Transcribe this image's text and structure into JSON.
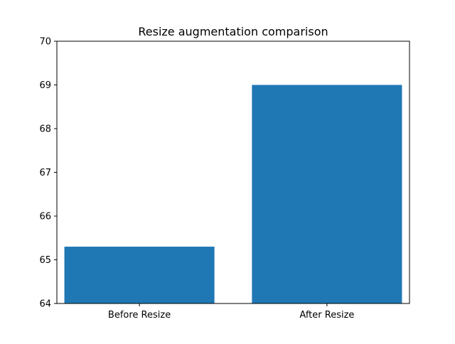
{
  "chart_data": {
    "type": "bar",
    "title": "Resize augmentation comparison",
    "xlabel": "",
    "ylabel": "",
    "categories": [
      "Before Resize",
      "After Resize"
    ],
    "values": [
      65.3,
      69.0
    ],
    "ylim": [
      64,
      70
    ],
    "yticks": [
      "64",
      "65",
      "66",
      "67",
      "68",
      "69",
      "70"
    ],
    "bar_color": "#1f77b4",
    "grid": false,
    "legend": false
  }
}
